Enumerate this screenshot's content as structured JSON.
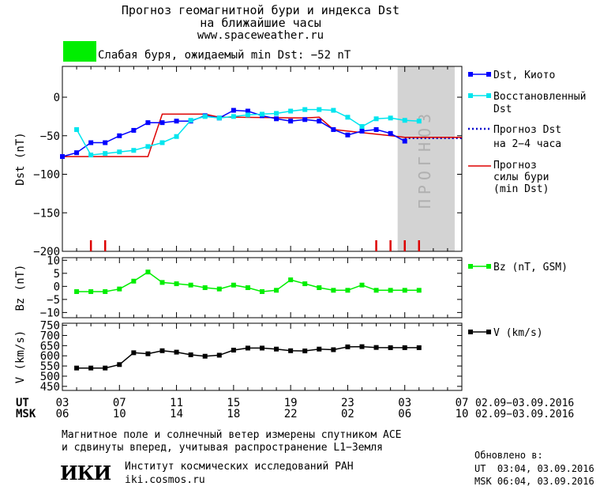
{
  "header": {
    "title_line1": "Прогноз геомагнитной бури и индекса Dst",
    "title_line2": "на ближайшие часы",
    "website": "www.spaceweather.ru"
  },
  "storm": {
    "label": "Слабая буря, ожидаемый min Dst: −52 nT",
    "color": "#00ee00"
  },
  "legend": {
    "dst_kyoto": "Dst, Киото",
    "dst_restored_1": "Восстановленный",
    "dst_restored_2": "Dst",
    "forecast_1": "Прогноз Dst",
    "forecast_2": "на 2−4 часа",
    "storm_1": "Прогноз",
    "storm_2": "силы бури",
    "storm_3": "(min Dst)",
    "bz": "Bz (nT, GSM)",
    "v": "V (km/s)"
  },
  "forecast_band_text": "ПРОГНОЗ",
  "time_axis": {
    "ut_label": "UT",
    "msk_label": "MSK",
    "ut_ticks": [
      "03",
      "07",
      "11",
      "15",
      "19",
      "23",
      "03",
      "07"
    ],
    "msk_ticks": [
      "06",
      "10",
      "14",
      "18",
      "22",
      "02",
      "06",
      "10"
    ],
    "date_range_ut": "02.09−03.09.2016",
    "date_range_msk": "02.09−03.09.2016"
  },
  "footer": {
    "note_line1": "Магнитное поле и солнечный ветер измерены спутником ACE",
    "note_line2": "и сдвинуты вперед, учитывая распространение L1−Земля",
    "logo_text": "ИКИ",
    "institute": "Институт космических исследований РАН",
    "institute_site": "iki.cosmos.ru",
    "updated_label": "Обновлено в:",
    "updated_ut": "UT  03:04, 03.09.2016",
    "updated_msk": "MSK 06:04, 03.09.2016"
  },
  "chart_data": [
    {
      "type": "line",
      "ylabel": "Dst (nT)",
      "ylim": [
        -200,
        40
      ],
      "yticks": [
        0,
        -50,
        -100,
        -150,
        -200
      ],
      "x_range_hours": [
        0,
        28
      ],
      "forecast_band_hours": [
        23.5,
        27.5
      ],
      "series": [
        {
          "name": "Dst, Киото",
          "color": "#0000ff",
          "marker": "square",
          "x": [
            0,
            1,
            2,
            3,
            4,
            5,
            6,
            7,
            8,
            9,
            10,
            11,
            12,
            13,
            14,
            15,
            16,
            17,
            18,
            19,
            20,
            21,
            22,
            23,
            24
          ],
          "values": [
            -77,
            -72,
            -59,
            -59,
            -50,
            -43,
            -33,
            -33,
            -31,
            -31,
            -24,
            -27,
            -17,
            -18,
            -24,
            -28,
            -31,
            -29,
            -31,
            -42,
            -49,
            -44,
            -42,
            -47,
            -57
          ]
        },
        {
          "name": "Восстановленный Dst",
          "color": "#00e5ee",
          "marker": "square",
          "x": [
            1,
            2,
            3,
            4,
            5,
            6,
            7,
            8,
            9,
            10,
            11,
            12,
            13,
            14,
            15,
            16,
            17,
            18,
            19,
            20,
            21,
            22,
            23,
            24,
            25
          ],
          "values": [
            -42,
            -75,
            -73,
            -71,
            -69,
            -64,
            -59,
            -51,
            -30,
            -25,
            -27,
            -25,
            -23,
            -22,
            -21,
            -18,
            -16,
            -16,
            -17,
            -26,
            -38,
            -28,
            -27,
            -30,
            -31
          ]
        },
        {
          "name": "Прогноз Dst на 2−4 часа",
          "color": "#0000cc",
          "style": "dotted",
          "x": [
            24,
            28
          ],
          "values": [
            -53,
            -53
          ]
        },
        {
          "name": "Прогноз силы бури (min Dst)",
          "color": "#dd0000",
          "style": "solid",
          "x": [
            0,
            6,
            7,
            10,
            11,
            12,
            17,
            18,
            19,
            24,
            28
          ],
          "values": [
            -77,
            -77,
            -22,
            -22,
            -26,
            -26,
            -27,
            -26,
            -42,
            -52,
            -52
          ]
        }
      ],
      "storm_markers_hours": [
        2,
        3,
        22,
        23,
        24,
        25
      ]
    },
    {
      "type": "line",
      "ylabel": "Bz (nT)",
      "ylim": [
        -12,
        11
      ],
      "yticks": [
        10,
        5,
        0,
        -5,
        -10
      ],
      "series": [
        {
          "name": "Bz (nT, GSM)",
          "color": "#00ee00",
          "marker": "square",
          "x": [
            1,
            2,
            3,
            4,
            5,
            6,
            7,
            8,
            9,
            10,
            11,
            12,
            13,
            14,
            15,
            16,
            17,
            18,
            19,
            20,
            21,
            22,
            23,
            24,
            25
          ],
          "values": [
            -2,
            -2,
            -2,
            -1,
            2,
            5.5,
            1.5,
            1,
            0.5,
            -0.5,
            -1,
            0.5,
            -0.5,
            -2,
            -1.5,
            2.5,
            1,
            -0.5,
            -1.5,
            -1.5,
            0.5,
            -1.5,
            -1.5,
            -1.5,
            -1.5
          ]
        }
      ]
    },
    {
      "type": "line",
      "ylabel": "V (km/s)",
      "ylim": [
        430,
        760
      ],
      "yticks": [
        750,
        700,
        650,
        600,
        550,
        500,
        450
      ],
      "series": [
        {
          "name": "V (km/s)",
          "color": "#000000",
          "marker": "square",
          "x": [
            1,
            2,
            3,
            4,
            5,
            6,
            7,
            8,
            9,
            10,
            11,
            12,
            13,
            14,
            15,
            16,
            17,
            18,
            19,
            20,
            21,
            22,
            23,
            24,
            25
          ],
          "values": [
            540,
            540,
            540,
            557,
            615,
            610,
            625,
            618,
            605,
            598,
            603,
            628,
            638,
            638,
            633,
            625,
            624,
            633,
            630,
            644,
            645,
            641,
            640,
            640,
            640
          ]
        }
      ]
    }
  ]
}
